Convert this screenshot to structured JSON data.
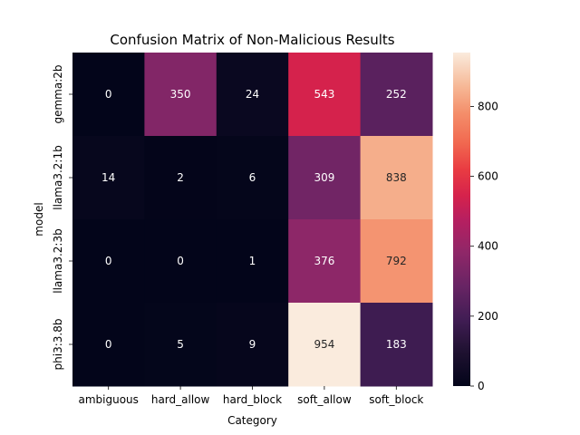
{
  "chart_data": {
    "type": "heatmap",
    "title": "Confusion Matrix of Non-Malicious Results",
    "xlabel": "Category",
    "ylabel": "model",
    "x_categories": [
      "ambiguous",
      "hard_allow",
      "hard_block",
      "soft_allow",
      "soft_block"
    ],
    "y_categories": [
      "gemma:2b",
      "llama3.2:1b",
      "llama3.2:3b",
      "phi3:3.8b"
    ],
    "values": [
      [
        0,
        350,
        24,
        543,
        252
      ],
      [
        14,
        2,
        6,
        309,
        838
      ],
      [
        0,
        0,
        1,
        376,
        792
      ],
      [
        0,
        5,
        9,
        954,
        183
      ]
    ],
    "colorbar": {
      "min": 0,
      "max": 954,
      "ticks": [
        0,
        200,
        400,
        600,
        800
      ],
      "tick_labels": [
        "0",
        "200",
        "400",
        "600",
        "800"
      ]
    },
    "colormap": "rocket",
    "annotations": true,
    "grid": false
  }
}
